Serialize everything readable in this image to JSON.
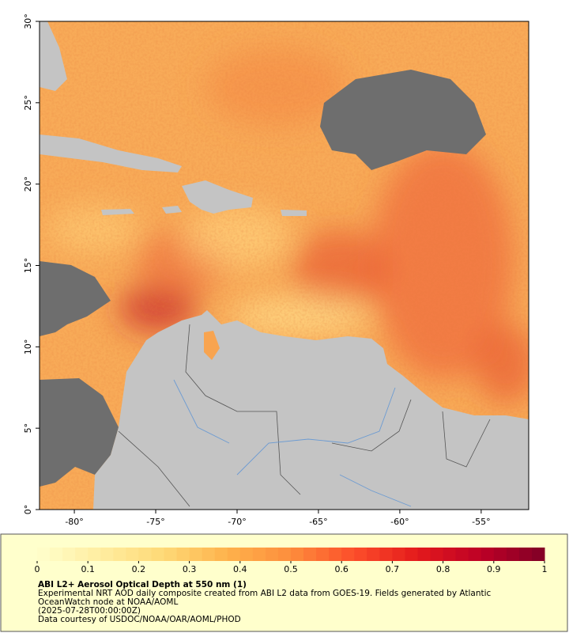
{
  "map": {
    "xaxis": {
      "lim": [
        -82.14,
        -52.08
      ],
      "ticks": [
        {
          "value": -80,
          "label": "-80°"
        },
        {
          "value": -75,
          "label": "-75°"
        },
        {
          "value": -70,
          "label": "-70°"
        },
        {
          "value": -65,
          "label": "-65°"
        },
        {
          "value": -60,
          "label": "-60°"
        },
        {
          "value": -55,
          "label": "-55°"
        }
      ]
    },
    "yaxis": {
      "lim": [
        0,
        30
      ],
      "ticks": [
        {
          "value": 0,
          "label": "0°"
        },
        {
          "value": 5,
          "label": "5°"
        },
        {
          "value": 10,
          "label": "10°"
        },
        {
          "value": 15,
          "label": "15°"
        },
        {
          "value": 20,
          "label": "20°"
        },
        {
          "value": 25,
          "label": "25°"
        },
        {
          "value": 30,
          "label": "30°"
        }
      ]
    }
  },
  "colorbar": {
    "lim": [
      0,
      1
    ],
    "ticks": [
      0,
      0.1,
      0.2,
      0.3,
      0.4,
      0.5,
      0.6,
      0.7,
      0.8,
      0.9,
      1
    ],
    "colors": [
      "#ffffcc",
      "#ffeda0",
      "#fed976",
      "#feb24c",
      "#fd8d3c",
      "#fc4e2a",
      "#e31a1c",
      "#bd0026",
      "#800026"
    ]
  },
  "caption": {
    "title": "ABI L2+ Aerosol Optical Depth at 550 nm (1)",
    "lines": [
      "Experimental NRT AOD daily composite created from ABI L2 data from GOES-19. Fields generated by Atlantic",
      "OceanWatch node at NOAA/AOML",
      "(2025-07-28T00:00:00Z)",
      "Data courtesy of USDOC/NOAA/OAR/AOML/PHOD"
    ]
  }
}
